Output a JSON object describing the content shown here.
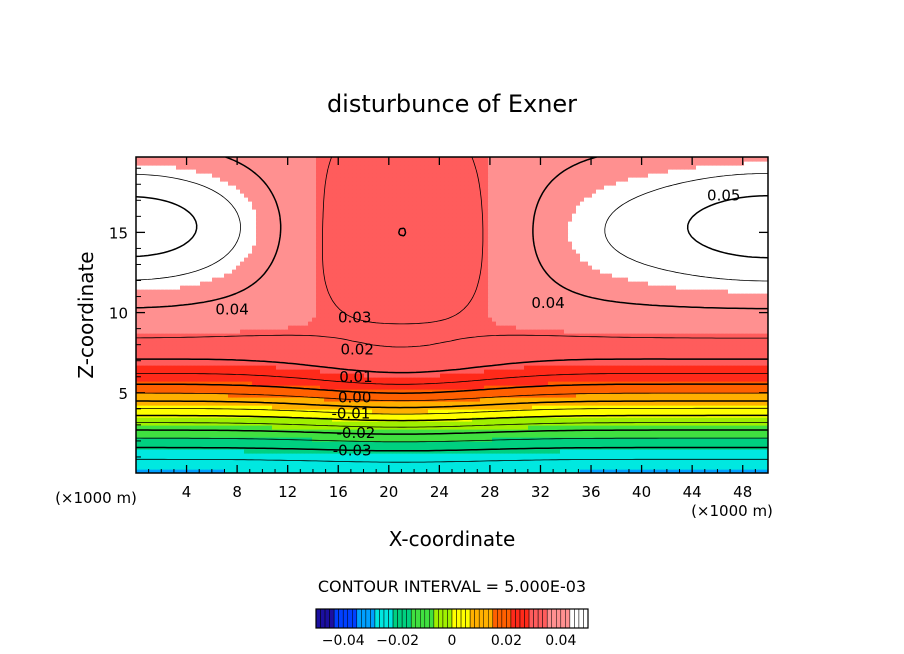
{
  "chart_data": {
    "type": "heatmap",
    "subtype": "filled-contour",
    "title": "disturbunce of Exner",
    "xlabel": "X-coordinate",
    "ylabel": "Z-coordinate",
    "x_unit": "(×1000 m)",
    "y_unit": "(×1000 m)",
    "xlim": [
      0,
      50
    ],
    "ylim": [
      0,
      19.7
    ],
    "x_ticks": [
      4,
      8,
      12,
      16,
      20,
      24,
      28,
      32,
      36,
      40,
      44,
      48
    ],
    "y_ticks": [
      5,
      10,
      15
    ],
    "field_range": [
      -0.05,
      0.05
    ],
    "contour_interval_label": "CONTOUR INTERVAL = 5.000E-03",
    "contour_interval": 0.005,
    "contour_labels": [
      {
        "text": "0.05",
        "x": 46.5,
        "z": 17.3
      },
      {
        "text": "0.04",
        "x": 7.6,
        "z": 10.2
      },
      {
        "text": "0.04",
        "x": 32.6,
        "z": 10.6
      },
      {
        "text": "0.03",
        "x": 17.3,
        "z": 9.7
      },
      {
        "text": "0.02",
        "x": 17.5,
        "z": 7.7
      },
      {
        "text": "0.01",
        "x": 17.4,
        "z": 6.0
      },
      {
        "text": "0.00",
        "x": 17.3,
        "z": 4.7
      },
      {
        "text": "-0.01",
        "x": 17.0,
        "z": 3.7
      },
      {
        "text": "-0.02",
        "x": 17.4,
        "z": 2.5
      },
      {
        "text": "-0.03",
        "x": 17.1,
        "z": 1.4
      }
    ],
    "colorbar": {
      "ticks": [
        -0.04,
        -0.02,
        0,
        0.02,
        0.04
      ],
      "tick_labels": [
        "−0.04",
        "−0.02",
        "0",
        "0.02",
        "0.04"
      ]
    },
    "colors": {
      "palette": [
        "#1b0fa0",
        "#0040ff",
        "#00a0ff",
        "#00e8e0",
        "#00d080",
        "#40e040",
        "#a0f000",
        "#ffff00",
        "#ffb000",
        "#ff6000",
        "#ff2a1a",
        "#ff5c5c",
        "#ff9090",
        "#ffffff"
      ]
    }
  }
}
